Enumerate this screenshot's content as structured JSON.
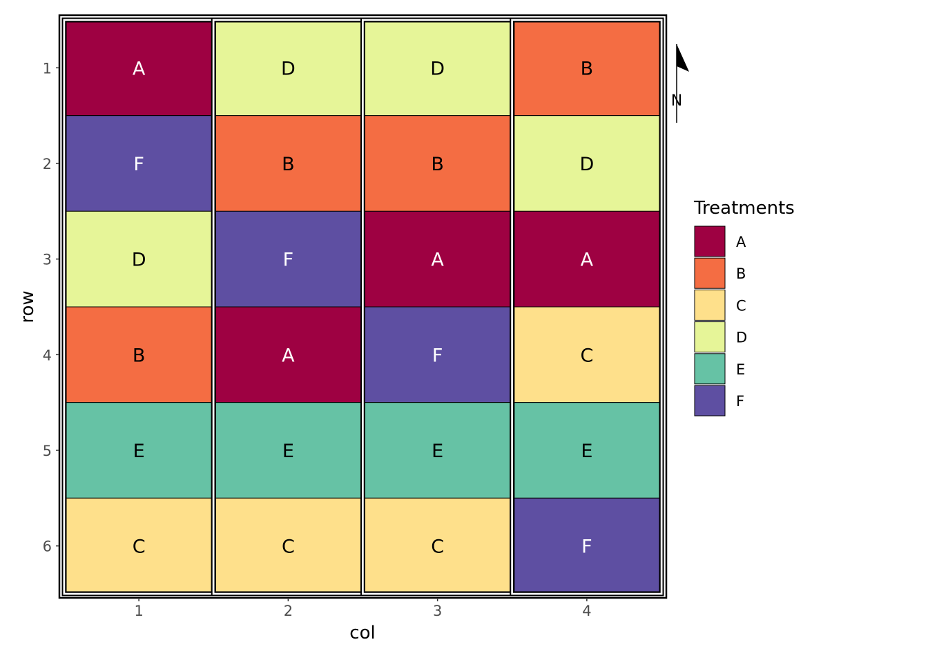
{
  "chart_data": {
    "type": "heatmap",
    "title": "",
    "xlabel": "col",
    "ylabel": "row",
    "x_categories": [
      "1",
      "2",
      "3",
      "4"
    ],
    "y_categories": [
      "1",
      "2",
      "3",
      "4",
      "5",
      "6"
    ],
    "grid": false,
    "legend_title": "Treatments",
    "legend_position": "right",
    "legend": [
      {
        "label": "A",
        "color": "#9E0142"
      },
      {
        "label": "B",
        "color": "#F46D43"
      },
      {
        "label": "C",
        "color": "#FEE08B"
      },
      {
        "label": "D",
        "color": "#E6F598"
      },
      {
        "label": "E",
        "color": "#66C2A5"
      },
      {
        "label": "F",
        "color": "#5E4FA2"
      }
    ],
    "light_text_treatments": [
      "A",
      "F"
    ],
    "cells": [
      {
        "col": 1,
        "row": 1,
        "treatment": "A"
      },
      {
        "col": 1,
        "row": 2,
        "treatment": "F"
      },
      {
        "col": 1,
        "row": 3,
        "treatment": "D"
      },
      {
        "col": 1,
        "row": 4,
        "treatment": "B"
      },
      {
        "col": 1,
        "row": 5,
        "treatment": "E"
      },
      {
        "col": 1,
        "row": 6,
        "treatment": "C"
      },
      {
        "col": 2,
        "row": 1,
        "treatment": "D"
      },
      {
        "col": 2,
        "row": 2,
        "treatment": "B"
      },
      {
        "col": 2,
        "row": 3,
        "treatment": "F"
      },
      {
        "col": 2,
        "row": 4,
        "treatment": "A"
      },
      {
        "col": 2,
        "row": 5,
        "treatment": "E"
      },
      {
        "col": 2,
        "row": 6,
        "treatment": "C"
      },
      {
        "col": 3,
        "row": 1,
        "treatment": "D"
      },
      {
        "col": 3,
        "row": 2,
        "treatment": "B"
      },
      {
        "col": 3,
        "row": 3,
        "treatment": "A"
      },
      {
        "col": 3,
        "row": 4,
        "treatment": "F"
      },
      {
        "col": 3,
        "row": 5,
        "treatment": "E"
      },
      {
        "col": 3,
        "row": 6,
        "treatment": "C"
      },
      {
        "col": 4,
        "row": 1,
        "treatment": "B"
      },
      {
        "col": 4,
        "row": 2,
        "treatment": "D"
      },
      {
        "col": 4,
        "row": 3,
        "treatment": "A"
      },
      {
        "col": 4,
        "row": 4,
        "treatment": "C"
      },
      {
        "col": 4,
        "row": 5,
        "treatment": "E"
      },
      {
        "col": 4,
        "row": 6,
        "treatment": "F"
      }
    ],
    "blocks": [
      1,
      2,
      3,
      4
    ],
    "north_arrow_label": "N"
  }
}
